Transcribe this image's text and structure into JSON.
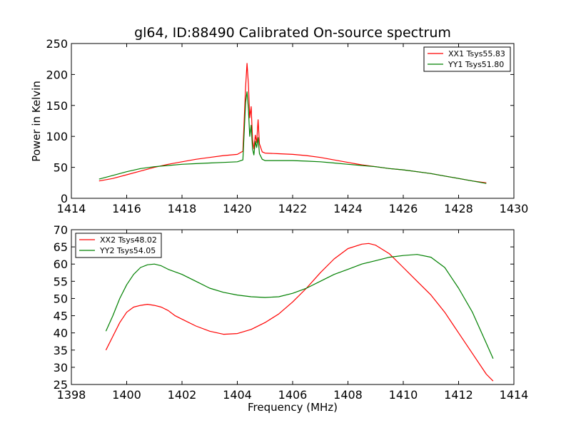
{
  "figure_title": "gl64, ID:88490 Calibrated On-source spectrum",
  "chart_data": [
    {
      "type": "line",
      "title": "gl64, ID:88490 Calibrated On-source spectrum",
      "xlabel": "",
      "ylabel": "Power in Kelvin",
      "xlim": [
        1414,
        1430
      ],
      "ylim": [
        0,
        250
      ],
      "xticks": [
        "1414",
        "1416",
        "1418",
        "1420",
        "1422",
        "1424",
        "1426",
        "1428",
        "1430"
      ],
      "yticks": [
        "0",
        "50",
        "100",
        "150",
        "200",
        "250"
      ],
      "legend_position": "top-right",
      "series": [
        {
          "name": "XX1 Tsys55.83",
          "color": "#ff0000",
          "x": [
            1415.0,
            1415.5,
            1416.0,
            1416.5,
            1417.0,
            1417.5,
            1418.0,
            1418.5,
            1419.0,
            1419.5,
            1420.0,
            1420.2,
            1420.3,
            1420.35,
            1420.4,
            1420.45,
            1420.5,
            1420.55,
            1420.6,
            1420.65,
            1420.7,
            1420.75,
            1420.8,
            1420.9,
            1421.0,
            1421.5,
            1422.0,
            1422.5,
            1423.0,
            1423.5,
            1424.0,
            1424.5,
            1425.0,
            1425.5,
            1426.0,
            1426.5,
            1427.0,
            1427.5,
            1428.0,
            1428.5,
            1429.0
          ],
          "values": [
            28,
            32,
            38,
            44,
            50,
            55,
            59,
            63,
            66,
            69,
            71,
            76,
            180,
            218,
            185,
            130,
            148,
            95,
            80,
            102,
            90,
            127,
            88,
            75,
            73,
            72,
            71,
            69,
            66,
            62,
            58,
            54,
            51,
            48,
            46,
            43,
            40,
            36,
            32,
            28,
            25
          ]
        },
        {
          "name": "YY1 Tsys51.80",
          "color": "#008000",
          "x": [
            1415.0,
            1415.5,
            1416.0,
            1416.5,
            1417.0,
            1417.5,
            1418.0,
            1418.5,
            1419.0,
            1419.5,
            1420.0,
            1420.2,
            1420.3,
            1420.35,
            1420.4,
            1420.45,
            1420.5,
            1420.55,
            1420.6,
            1420.65,
            1420.7,
            1420.75,
            1420.8,
            1420.9,
            1421.0,
            1421.5,
            1422.0,
            1422.5,
            1423.0,
            1423.5,
            1424.0,
            1424.5,
            1425.0,
            1425.5,
            1426.0,
            1426.5,
            1427.0,
            1427.5,
            1428.0,
            1428.5,
            1429.0
          ],
          "values": [
            31,
            37,
            43,
            48,
            51,
            53,
            55,
            56,
            57,
            58,
            59,
            62,
            155,
            172,
            145,
            100,
            118,
            80,
            70,
            92,
            82,
            98,
            72,
            63,
            61,
            61,
            61,
            60,
            59,
            57,
            55,
            53,
            51,
            48,
            46,
            43,
            40,
            36,
            32,
            28,
            24
          ]
        }
      ]
    },
    {
      "type": "line",
      "title": "",
      "xlabel": "Frequency (MHz)",
      "ylabel": "",
      "xlim": [
        1398,
        1414
      ],
      "ylim": [
        25,
        70
      ],
      "xticks": [
        "1398",
        "1400",
        "1402",
        "1404",
        "1406",
        "1408",
        "1410",
        "1412",
        "1414"
      ],
      "yticks": [
        "25",
        "30",
        "35",
        "40",
        "45",
        "50",
        "55",
        "60",
        "65",
        "70"
      ],
      "legend_position": "top-left",
      "series": [
        {
          "name": "XX2 Tsys48.02",
          "color": "#ff0000",
          "x": [
            1399.25,
            1399.5,
            1399.75,
            1400.0,
            1400.25,
            1400.5,
            1400.75,
            1401.0,
            1401.25,
            1401.5,
            1401.75,
            1402.0,
            1402.5,
            1403.0,
            1403.5,
            1404.0,
            1404.5,
            1405.0,
            1405.5,
            1406.0,
            1406.5,
            1407.0,
            1407.5,
            1408.0,
            1408.5,
            1408.75,
            1409.0,
            1409.5,
            1410.0,
            1410.5,
            1411.0,
            1411.5,
            1412.0,
            1412.5,
            1413.0,
            1413.25
          ],
          "values": [
            35,
            39,
            43,
            46,
            47.5,
            48,
            48.3,
            48,
            47.5,
            46.5,
            45,
            44,
            42,
            40.5,
            39.6,
            39.8,
            41,
            43,
            45.5,
            49,
            53,
            57.5,
            61.5,
            64.5,
            65.8,
            66,
            65.5,
            63,
            59,
            55,
            51,
            46,
            40,
            34,
            28,
            26
          ]
        },
        {
          "name": "YY2 Tsys54.05",
          "color": "#008000",
          "x": [
            1399.25,
            1399.5,
            1399.75,
            1400.0,
            1400.25,
            1400.5,
            1400.75,
            1401.0,
            1401.25,
            1401.5,
            1402.0,
            1402.5,
            1403.0,
            1403.5,
            1404.0,
            1404.5,
            1405.0,
            1405.5,
            1406.0,
            1406.5,
            1407.0,
            1407.5,
            1408.0,
            1408.5,
            1409.0,
            1409.5,
            1410.0,
            1410.5,
            1411.0,
            1411.5,
            1412.0,
            1412.5,
            1413.0,
            1413.25
          ],
          "values": [
            40.5,
            45,
            50,
            54,
            57,
            59,
            59.8,
            60,
            59.5,
            58.5,
            57,
            55,
            53,
            51.8,
            51,
            50.5,
            50.3,
            50.5,
            51.5,
            53,
            55,
            57,
            58.5,
            60,
            61,
            62,
            62.5,
            62.8,
            62,
            59,
            53,
            46,
            37,
            32.5
          ]
        }
      ]
    }
  ]
}
